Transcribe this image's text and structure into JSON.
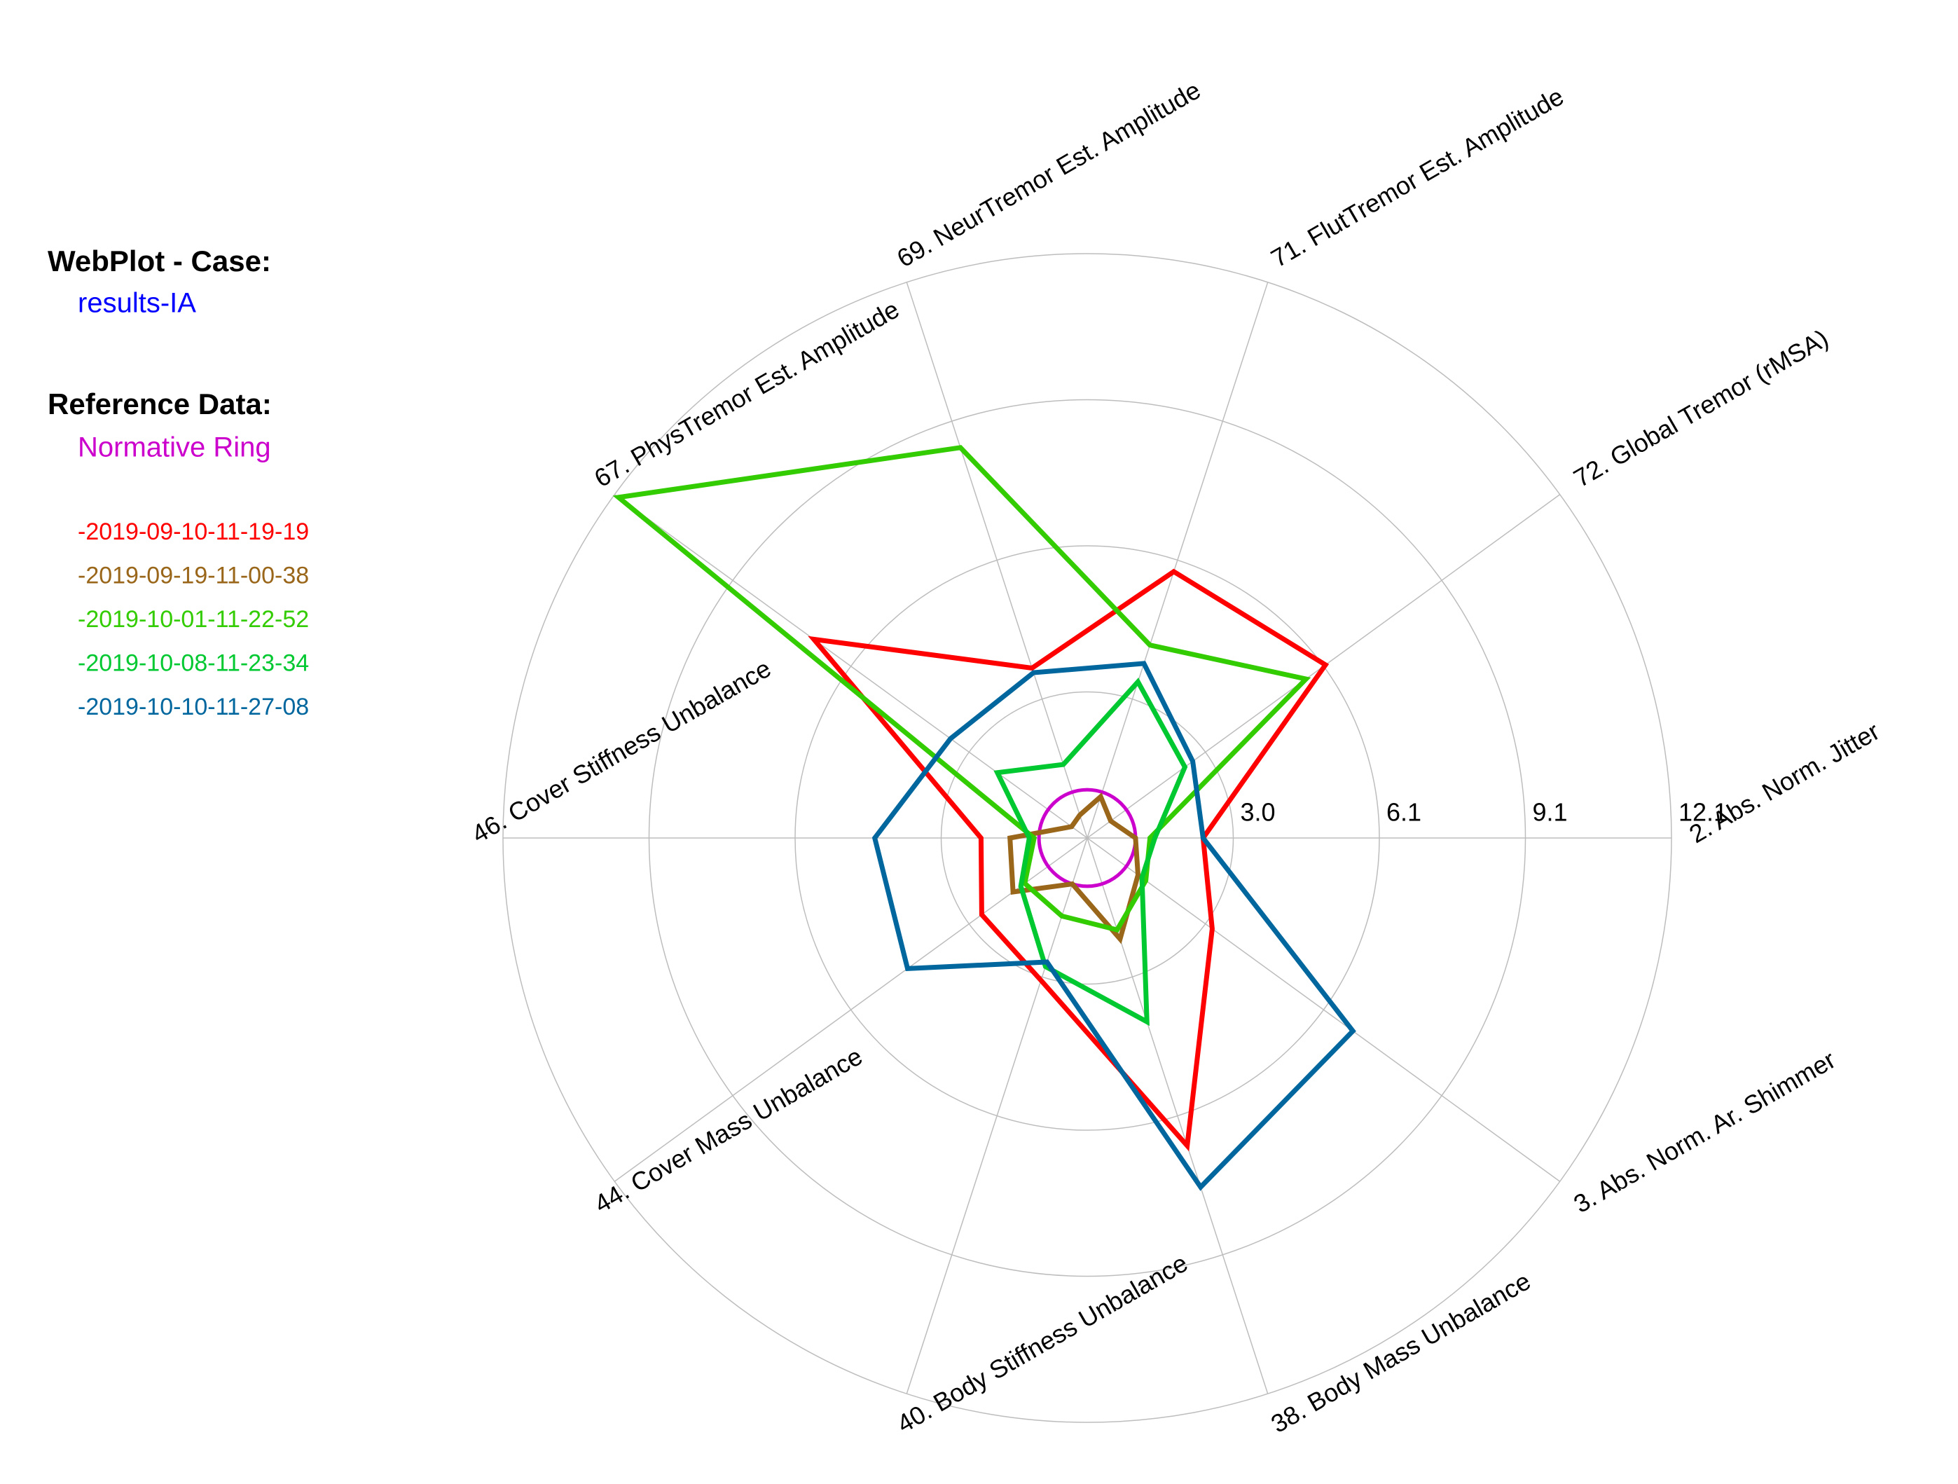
{
  "chart_data": {
    "type": "radar",
    "case_title": "WebPlot - Case:",
    "case_name": "results-IA",
    "case_color": "#0000ff",
    "reference_title": "Reference Data:",
    "reference": {
      "name": "Normative Ring",
      "color": "#cc00cc",
      "value": 1.0
    },
    "categories": [
      "2. Abs. Norm. Jitter",
      "72. Global Tremor (rMSA)",
      "71. FlutTremor Est. Amplitude",
      "69. NeurTremor Est. Amplitude",
      "67. PhysTremor Est. Amplitude",
      "46. Cover Stiffness Unbalance",
      "44. Cover Mass Unbalance",
      "40. Body Stiffness Unbalance",
      "38. Body Mass Unbalance",
      "3. Abs. Norm. Ar. Shimmer"
    ],
    "rlim": [
      0,
      12.1
    ],
    "rticks": [
      {
        "value": 3.025,
        "label": "3.0"
      },
      {
        "value": 6.05,
        "label": "6.1"
      },
      {
        "value": 9.075,
        "label": "9.1"
      },
      12.1
    ],
    "grid": true,
    "series": [
      {
        "name": "-2019-09-10-11-19-19",
        "color": "#ff0000",
        "values": [
          2.4,
          6.1,
          5.8,
          3.7,
          7.0,
          2.2,
          2.7,
          3.1,
          6.7,
          3.2
        ]
      },
      {
        "name": "-2019-09-19-11-00-38",
        "color": "#99661a",
        "values": [
          1.0,
          0.6,
          0.9,
          0.5,
          0.4,
          1.6,
          1.9,
          1.0,
          2.2,
          1.3
        ]
      },
      {
        "name": "-2019-10-01-11-22-52",
        "color": "#33cc00",
        "values": [
          1.3,
          5.6,
          4.2,
          8.5,
          12.0,
          1.1,
          1.6,
          1.7,
          2.0,
          1.5
        ]
      },
      {
        "name": "-2019-10-08-11-23-34",
        "color": "#00c830",
        "values": [
          1.4,
          2.5,
          3.4,
          1.6,
          2.3,
          1.2,
          1.7,
          2.8,
          4.0,
          1.4
        ]
      },
      {
        "name": "-2019-10-10-11-27-08",
        "color": "#00669e",
        "values": [
          2.4,
          2.7,
          3.8,
          3.6,
          3.5,
          4.4,
          4.6,
          2.7,
          7.6,
          6.8
        ]
      }
    ]
  }
}
